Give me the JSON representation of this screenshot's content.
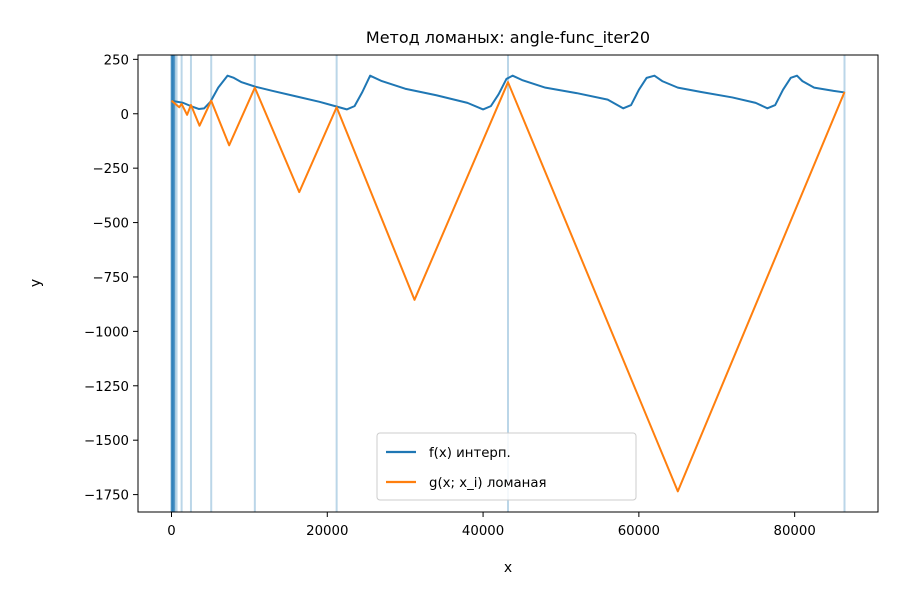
{
  "chart_data": {
    "type": "line",
    "title": "Метод ломаных: angle-func_iter20",
    "xlabel": "x",
    "ylabel": "y",
    "xlim": [
      -4300,
      90700
    ],
    "ylim": [
      -1830,
      270
    ],
    "xticks": [
      0,
      20000,
      40000,
      60000,
      80000
    ],
    "xtick_labels": [
      "0",
      "20000",
      "40000",
      "60000",
      "80000"
    ],
    "yticks": [
      250,
      0,
      -250,
      -500,
      -750,
      -1000,
      -1250,
      -1500,
      -1750
    ],
    "ytick_labels": [
      "250",
      "0",
      "−250",
      "−500",
      "−750",
      "−1000",
      "−1250",
      "−1500",
      "−1750"
    ],
    "legend_position": "lower-center",
    "sample_points": [
      0,
      100,
      200,
      350,
      600,
      1300,
      2500,
      5100,
      10700,
      21200,
      43200,
      86400
    ],
    "series": [
      {
        "name": "f(x) интерп.",
        "color": "#1f77b4",
        "x": [
          0,
          1500,
          2500,
          3500,
          4200,
          5000,
          6000,
          7200,
          8000,
          9000,
          10700,
          13000,
          16000,
          19000,
          21000,
          22500,
          23500,
          24500,
          25500,
          27000,
          30000,
          34000,
          38000,
          40000,
          41000,
          42000,
          43000,
          43800,
          45000,
          48000,
          52000,
          56000,
          58000,
          59000,
          60000,
          61000,
          62000,
          63000,
          65000,
          68000,
          72000,
          75000,
          76500,
          77500,
          78500,
          79500,
          80300,
          81000,
          82500,
          85000,
          86400
        ],
        "y": [
          60,
          50,
          35,
          22,
          25,
          55,
          120,
          175,
          165,
          145,
          125,
          105,
          80,
          55,
          35,
          20,
          35,
          100,
          175,
          150,
          115,
          85,
          50,
          20,
          35,
          90,
          160,
          175,
          155,
          120,
          95,
          65,
          25,
          40,
          110,
          165,
          175,
          150,
          120,
          100,
          75,
          50,
          25,
          40,
          110,
          165,
          175,
          150,
          120,
          105,
          98
        ]
      },
      {
        "name": "g(x; x_i) ломаная",
        "color": "#ff7f0e",
        "x": [
          0,
          1000,
          1300,
          2000,
          2500,
          3600,
          5100,
          7400,
          10700,
          16400,
          21200,
          31200,
          43200,
          65000,
          86400
        ],
        "y": [
          60,
          30,
          45,
          -5,
          40,
          -55,
          60,
          -145,
          120,
          -360,
          30,
          -855,
          145,
          -1735,
          100
        ]
      }
    ],
    "vlines": {
      "color": "#1f77b4",
      "x_light": [
        0,
        120,
        250,
        400,
        650,
        1300,
        2500,
        5100,
        10700,
        21200,
        43200,
        86400
      ],
      "x_dark": [
        0,
        80,
        160,
        250,
        380
      ]
    }
  }
}
